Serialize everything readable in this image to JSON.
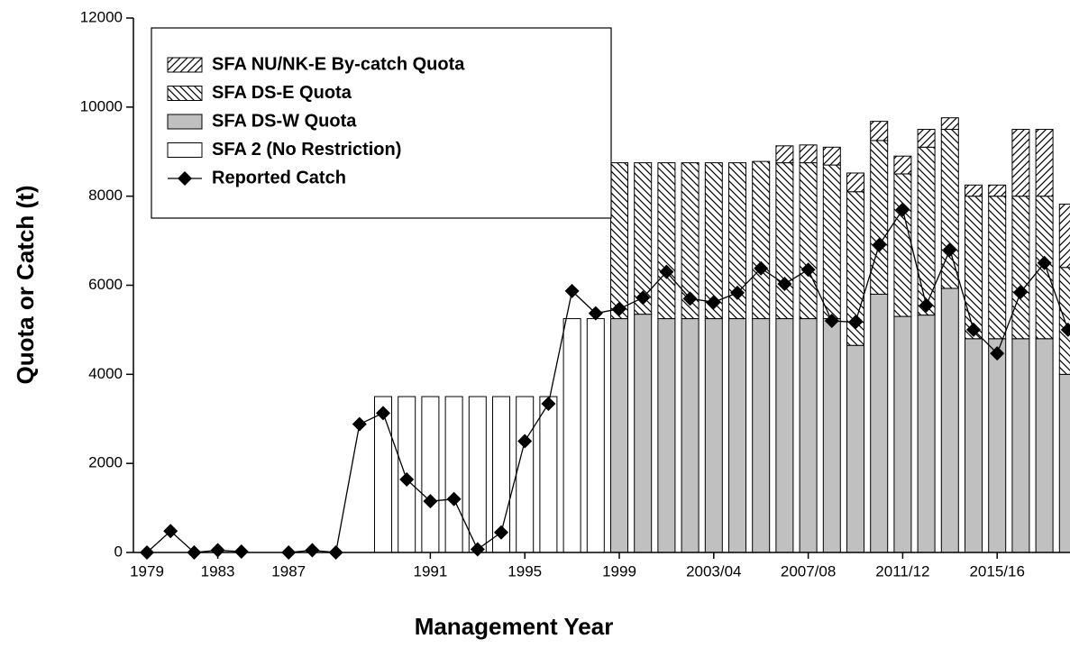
{
  "chart_data": {
    "type": "stacked_bar_line",
    "x_label": "Management Year",
    "y_label": "Quota or Catch (t)",
    "categories": [
      "1979",
      null,
      null,
      "1983",
      null,
      null,
      "1987",
      null,
      null,
      null,
      null,
      null,
      "1991",
      null,
      null,
      null,
      "1995",
      null,
      null,
      null,
      "1999",
      null,
      null,
      null,
      "2003/04",
      null,
      null,
      null,
      "2007/08",
      null,
      null,
      null,
      "2011/12",
      null,
      null,
      null,
      "2015/16",
      null,
      null,
      null
    ],
    "ylim": [
      0,
      12000
    ],
    "yticks": [
      0,
      2000,
      4000,
      6000,
      8000,
      10000,
      12000
    ],
    "grid": false,
    "legend_position": "upper left",
    "series": [
      {
        "name": "SFA NU/NK-E By-catch Quota",
        "kind": "bar",
        "color": "#000000",
        "hatch": "forward",
        "values": [
          null,
          null,
          null,
          null,
          null,
          null,
          null,
          null,
          null,
          null,
          null,
          null,
          null,
          null,
          null,
          null,
          null,
          null,
          null,
          null,
          null,
          null,
          null,
          null,
          null,
          null,
          null,
          380,
          400,
          400,
          420,
          430,
          400,
          400,
          260,
          250,
          250,
          1500,
          1500,
          1420
        ]
      },
      {
        "name": "SFA DS-E Quota",
        "kind": "bar",
        "color": "#000000",
        "hatch": "back",
        "values": [
          null,
          null,
          null,
          null,
          null,
          null,
          null,
          null,
          null,
          null,
          null,
          null,
          null,
          null,
          null,
          null,
          null,
          null,
          null,
          null,
          3500,
          3400,
          3500,
          3500,
          3500,
          3500,
          3530,
          3500,
          3500,
          3450,
          3450,
          3450,
          3200,
          3770,
          3570,
          3200,
          3200,
          3200,
          3200,
          2400
        ]
      },
      {
        "name": "SFA DS-W Quota",
        "kind": "bar",
        "color": "#c0c0c0",
        "values": [
          null,
          null,
          null,
          null,
          null,
          null,
          null,
          null,
          null,
          null,
          null,
          null,
          null,
          null,
          null,
          null,
          null,
          null,
          null,
          null,
          5250,
          5350,
          5250,
          5250,
          5250,
          5250,
          5250,
          5250,
          5250,
          5250,
          4650,
          5800,
          5300,
          5330,
          5930,
          4800,
          4800,
          4800,
          4800,
          4000
        ]
      },
      {
        "name": "SFA 2 (No Restriction)",
        "kind": "bar",
        "color": "#ffffff",
        "values": [
          null,
          null,
          null,
          null,
          null,
          null,
          null,
          null,
          null,
          null,
          3500,
          3500,
          3500,
          3500,
          3500,
          3500,
          3500,
          3500,
          5250,
          5250,
          null,
          null,
          null,
          null,
          null,
          null,
          null,
          null,
          null,
          null,
          null,
          null,
          null,
          null,
          null,
          null,
          null,
          null,
          null,
          null
        ]
      },
      {
        "name": "Reported Catch",
        "kind": "line",
        "color": "#000000",
        "values": [
          0,
          480,
          0,
          50,
          20,
          null,
          0,
          50,
          0,
          2880,
          3130,
          1640,
          1150,
          1200,
          70,
          450,
          2500,
          3340,
          5870,
          5370,
          5470,
          5720,
          6300,
          5700,
          5620,
          5830,
          6380,
          6030,
          6350,
          5200,
          5170,
          6900,
          7700,
          5550,
          6800,
          5000,
          4470,
          5850,
          6500,
          5000
        ]
      }
    ]
  }
}
